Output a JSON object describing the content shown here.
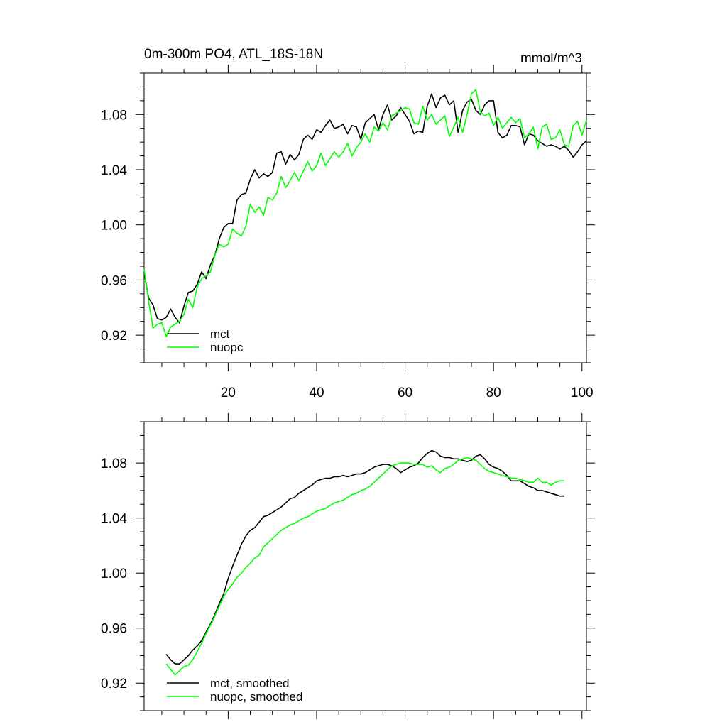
{
  "chart_data": [
    {
      "type": "line",
      "title": "0m-300m PO4, ATL_18S-18N",
      "units": "mmol/m^3",
      "xlabel": "",
      "ylabel": "",
      "xlim": [
        1,
        101
      ],
      "ylim": [
        0.9,
        1.11
      ],
      "xticks": [
        20,
        40,
        60,
        80,
        100
      ],
      "xtick_labels": [
        "20",
        "40",
        "60",
        "80",
        "100"
      ],
      "yticks": [
        0.92,
        0.96,
        1.0,
        1.04,
        1.08
      ],
      "ytick_labels": [
        "0.92",
        "0.96",
        "1.00",
        "1.04",
        "1.08"
      ],
      "grid": false,
      "legend_position": "bottom-left",
      "series": [
        {
          "name": "mct",
          "color": "#000000",
          "x": [
            1,
            2,
            3,
            4,
            5,
            6,
            7,
            8,
            9,
            10,
            11,
            12,
            13,
            14,
            15,
            16,
            17,
            18,
            19,
            20,
            21,
            22,
            23,
            24,
            25,
            26,
            27,
            28,
            29,
            30,
            31,
            32,
            33,
            34,
            35,
            36,
            37,
            38,
            39,
            40,
            41,
            42,
            43,
            44,
            45,
            46,
            47,
            48,
            49,
            50,
            51,
            52,
            53,
            54,
            55,
            56,
            57,
            58,
            59,
            60,
            61,
            62,
            63,
            64,
            65,
            66,
            67,
            68,
            69,
            70,
            71,
            72,
            73,
            74,
            75,
            76,
            77,
            78,
            79,
            80,
            81,
            82,
            83,
            84,
            85,
            86,
            87,
            88,
            89,
            90,
            91,
            92,
            93,
            94,
            95,
            96,
            97,
            98,
            99,
            100,
            101
          ],
          "values": [
            0.966,
            0.947,
            0.942,
            0.932,
            0.931,
            0.933,
            0.939,
            0.933,
            0.929,
            0.941,
            0.951,
            0.952,
            0.957,
            0.966,
            0.961,
            0.971,
            0.978,
            0.99,
            0.998,
            1.001,
            1.001,
            1.018,
            1.022,
            1.023,
            1.033,
            1.04,
            1.034,
            1.037,
            1.035,
            1.038,
            1.052,
            1.053,
            1.044,
            1.051,
            1.047,
            1.051,
            1.062,
            1.065,
            1.062,
            1.069,
            1.067,
            1.072,
            1.076,
            1.07,
            1.071,
            1.073,
            1.066,
            1.072,
            1.071,
            1.062,
            1.074,
            1.077,
            1.08,
            1.069,
            1.08,
            1.087,
            1.076,
            1.079,
            1.085,
            1.08,
            1.075,
            1.066,
            1.068,
            1.067,
            1.086,
            1.095,
            1.085,
            1.092,
            1.094,
            1.087,
            1.09,
            1.067,
            1.083,
            1.089,
            1.091,
            1.083,
            1.08,
            1.087,
            1.09,
            1.09,
            1.067,
            1.063,
            1.065,
            1.072,
            1.072,
            1.071,
            1.058,
            1.066,
            1.065,
            1.061,
            1.059,
            1.057,
            1.058,
            1.057,
            1.055,
            1.057,
            1.054,
            1.049,
            1.053,
            1.058,
            1.061
          ]
        },
        {
          "name": "nuopc",
          "color": "#00ff00",
          "x": [
            1,
            2,
            3,
            4,
            5,
            6,
            7,
            8,
            9,
            10,
            11,
            12,
            13,
            14,
            15,
            16,
            17,
            18,
            19,
            20,
            21,
            22,
            23,
            24,
            25,
            26,
            27,
            28,
            29,
            30,
            31,
            32,
            33,
            34,
            35,
            36,
            37,
            38,
            39,
            40,
            41,
            42,
            43,
            44,
            45,
            46,
            47,
            48,
            49,
            50,
            51,
            52,
            53,
            54,
            55,
            56,
            57,
            58,
            59,
            60,
            61,
            62,
            63,
            64,
            65,
            66,
            67,
            68,
            69,
            70,
            71,
            72,
            73,
            74,
            75,
            76,
            77,
            78,
            79,
            80,
            81,
            82,
            83,
            84,
            85,
            86,
            87,
            88,
            89,
            90,
            91,
            92,
            93,
            94,
            95,
            96,
            97,
            98,
            99,
            100,
            101
          ],
          "values": [
            0.968,
            0.945,
            0.925,
            0.928,
            0.929,
            0.919,
            0.926,
            0.928,
            0.93,
            0.935,
            0.946,
            0.94,
            0.955,
            0.961,
            0.963,
            0.966,
            0.978,
            0.986,
            0.984,
            0.986,
            0.997,
            0.994,
            0.992,
            0.999,
            1.015,
            1.009,
            1.013,
            1.007,
            1.02,
            1.018,
            1.023,
            1.035,
            1.027,
            1.032,
            1.038,
            1.032,
            1.039,
            1.046,
            1.039,
            1.043,
            1.052,
            1.043,
            1.048,
            1.053,
            1.049,
            1.053,
            1.059,
            1.05,
            1.056,
            1.06,
            1.066,
            1.06,
            1.071,
            1.068,
            1.074,
            1.069,
            1.079,
            1.081,
            1.083,
            1.085,
            1.084,
            1.074,
            1.073,
            1.086,
            1.076,
            1.08,
            1.073,
            1.076,
            1.079,
            1.064,
            1.071,
            1.078,
            1.067,
            1.08,
            1.095,
            1.098,
            1.082,
            1.079,
            1.081,
            1.072,
            1.078,
            1.07,
            1.074,
            1.078,
            1.074,
            1.077,
            1.063,
            1.066,
            1.071,
            1.055,
            1.071,
            1.073,
            1.062,
            1.063,
            1.069,
            1.058,
            1.057,
            1.072,
            1.075,
            1.065,
            1.076
          ]
        }
      ]
    },
    {
      "type": "line",
      "title": "",
      "xlabel": "",
      "ylabel": "",
      "xlim": [
        1,
        101
      ],
      "ylim": [
        0.9,
        1.11
      ],
      "xticks": [
        20,
        40,
        60,
        80,
        100
      ],
      "yticks": [
        0.92,
        0.96,
        1.0,
        1.04,
        1.08
      ],
      "ytick_labels": [
        "0.92",
        "0.96",
        "1.00",
        "1.04",
        "1.08"
      ],
      "grid": false,
      "legend_position": "bottom-left",
      "series": [
        {
          "name": "mct, smoothed",
          "color": "#000000",
          "x": [
            6,
            7,
            8,
            9,
            10,
            11,
            12,
            13,
            14,
            15,
            16,
            17,
            18,
            19,
            20,
            21,
            22,
            23,
            24,
            25,
            26,
            27,
            28,
            29,
            30,
            31,
            32,
            33,
            34,
            35,
            36,
            37,
            38,
            39,
            40,
            41,
            42,
            43,
            44,
            45,
            46,
            47,
            48,
            49,
            50,
            51,
            52,
            53,
            54,
            55,
            56,
            57,
            58,
            59,
            60,
            61,
            62,
            63,
            64,
            65,
            66,
            67,
            68,
            69,
            70,
            71,
            72,
            73,
            74,
            75,
            76,
            77,
            78,
            79,
            80,
            81,
            82,
            83,
            84,
            85,
            86,
            87,
            88,
            89,
            90,
            91,
            92,
            93,
            94,
            95,
            96
          ],
          "values": [
            0.941,
            0.937,
            0.934,
            0.934,
            0.937,
            0.94,
            0.944,
            0.947,
            0.951,
            0.957,
            0.963,
            0.97,
            0.978,
            0.985,
            0.996,
            1.005,
            1.013,
            1.021,
            1.027,
            1.031,
            1.033,
            1.037,
            1.041,
            1.042,
            1.044,
            1.046,
            1.048,
            1.051,
            1.054,
            1.055,
            1.058,
            1.06,
            1.062,
            1.064,
            1.067,
            1.068,
            1.069,
            1.069,
            1.07,
            1.07,
            1.071,
            1.07,
            1.071,
            1.072,
            1.072,
            1.073,
            1.075,
            1.077,
            1.078,
            1.079,
            1.079,
            1.078,
            1.076,
            1.073,
            1.075,
            1.077,
            1.078,
            1.08,
            1.084,
            1.087,
            1.089,
            1.088,
            1.085,
            1.084,
            1.084,
            1.083,
            1.083,
            1.082,
            1.081,
            1.082,
            1.085,
            1.086,
            1.083,
            1.079,
            1.077,
            1.076,
            1.074,
            1.071,
            1.067,
            1.067,
            1.067,
            1.065,
            1.063,
            1.062,
            1.06,
            1.06,
            1.059,
            1.058,
            1.057,
            1.056,
            1.056
          ]
        },
        {
          "name": "nuopc, smoothed",
          "color": "#00ff00",
          "x": [
            6,
            7,
            8,
            9,
            10,
            11,
            12,
            13,
            14,
            15,
            16,
            17,
            18,
            19,
            20,
            21,
            22,
            23,
            24,
            25,
            26,
            27,
            28,
            29,
            30,
            31,
            32,
            33,
            34,
            35,
            36,
            37,
            38,
            39,
            40,
            41,
            42,
            43,
            44,
            45,
            46,
            47,
            48,
            49,
            50,
            51,
            52,
            53,
            54,
            55,
            56,
            57,
            58,
            59,
            60,
            61,
            62,
            63,
            64,
            65,
            66,
            67,
            68,
            69,
            70,
            71,
            72,
            73,
            74,
            75,
            76,
            77,
            78,
            79,
            80,
            81,
            82,
            83,
            84,
            85,
            86,
            87,
            88,
            89,
            90,
            91,
            92,
            93,
            94,
            95,
            96
          ],
          "values": [
            0.934,
            0.93,
            0.926,
            0.929,
            0.932,
            0.933,
            0.937,
            0.943,
            0.949,
            0.956,
            0.962,
            0.969,
            0.976,
            0.983,
            0.988,
            0.992,
            0.997,
            1.0,
            1.004,
            1.007,
            1.011,
            1.013,
            1.019,
            1.022,
            1.025,
            1.028,
            1.031,
            1.033,
            1.035,
            1.036,
            1.038,
            1.04,
            1.041,
            1.043,
            1.045,
            1.046,
            1.047,
            1.049,
            1.051,
            1.052,
            1.053,
            1.055,
            1.057,
            1.058,
            1.06,
            1.061,
            1.063,
            1.066,
            1.069,
            1.072,
            1.075,
            1.078,
            1.079,
            1.08,
            1.08,
            1.08,
            1.079,
            1.079,
            1.079,
            1.077,
            1.078,
            1.075,
            1.073,
            1.076,
            1.077,
            1.079,
            1.082,
            1.083,
            1.084,
            1.083,
            1.082,
            1.079,
            1.076,
            1.074,
            1.073,
            1.072,
            1.071,
            1.07,
            1.069,
            1.069,
            1.068,
            1.067,
            1.066,
            1.066,
            1.069,
            1.066,
            1.066,
            1.064,
            1.066,
            1.067,
            1.067
          ]
        }
      ]
    }
  ]
}
